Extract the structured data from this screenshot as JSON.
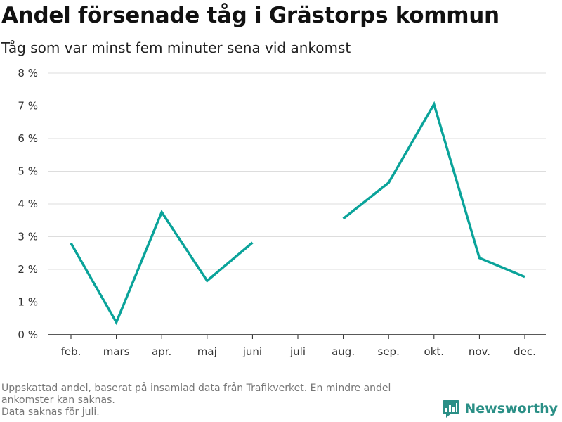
{
  "title": "Andel försenade tåg i Grästorps kommun",
  "subtitle": "Tåg som var minst fem minuter sena vid ankomst",
  "footer": {
    "line1": "Uppskattad andel, baserat på insamlad data från Trafikverket. En mindre andel",
    "line2": "ankomster kan saknas.",
    "line3": "Data saknas för juli."
  },
  "brand": {
    "name": "Newsworthy",
    "icon": "newsworthy-logo-icon"
  },
  "colors": {
    "line": "#0aa39a",
    "grid": "#dddddd",
    "axis": "#222222",
    "brand": "#2a8f86"
  },
  "chart_data": {
    "type": "line",
    "categories": [
      "feb.",
      "mars",
      "apr.",
      "maj",
      "juni",
      "juli",
      "aug.",
      "sep.",
      "okt.",
      "nov.",
      "dec."
    ],
    "series": [
      {
        "values": [
          2.8,
          0.38,
          3.75,
          1.65,
          2.82,
          null,
          3.55,
          4.65,
          7.05,
          2.35,
          1.77
        ]
      }
    ],
    "ylim": [
      0,
      8
    ],
    "yticks": [
      0,
      1,
      2,
      3,
      4,
      5,
      6,
      7,
      8
    ],
    "ytick_labels": [
      "0 %",
      "1 %",
      "2 %",
      "3 %",
      "4 %",
      "5 %",
      "6 %",
      "7 %",
      "8 %"
    ],
    "grid": true,
    "legend": "none"
  }
}
